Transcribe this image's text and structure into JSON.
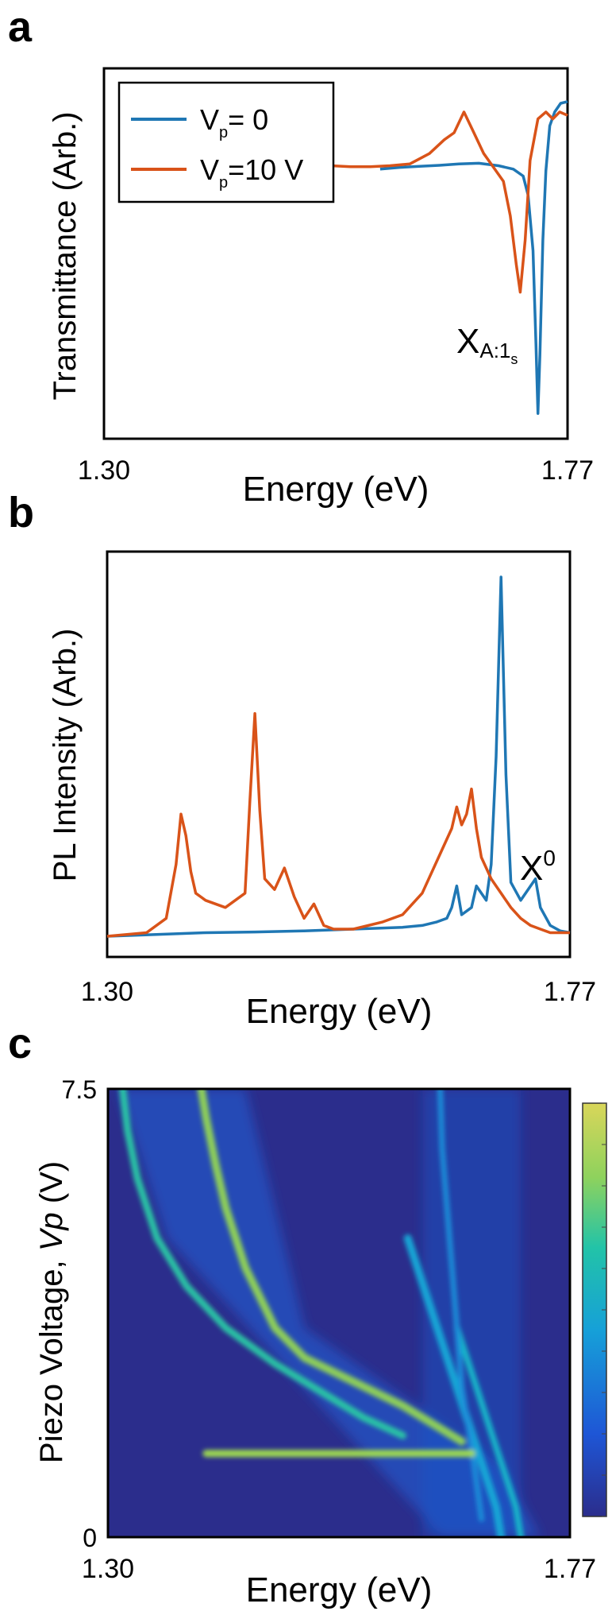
{
  "colors": {
    "series_blue": "#1f77b4",
    "series_orange": "#d95319",
    "map_low": "#2b2d8c",
    "map_high": "#f9fb57"
  },
  "chart_data": [
    {
      "panel": "a",
      "type": "line",
      "ylabel": "Transmittance (Arb.)",
      "xlabel": "Energy (eV)",
      "xlim": [
        1.3,
        1.77
      ],
      "x_ticks": [
        "1.30",
        "1.77"
      ],
      "legend": {
        "placement": "top-left",
        "entries": [
          {
            "main": "V",
            "sub": "p",
            "rest": "= 0",
            "color": "#1f77b4"
          },
          {
            "main": "V",
            "sub": "p",
            "rest": "=10 V",
            "color": "#d95319"
          }
        ]
      },
      "annotation": {
        "main": "X",
        "sub": "A:1",
        "subsub": "s"
      },
      "series": [
        {
          "name": "V_p= 0",
          "color": "#1f77b4",
          "x": [
            1.58,
            1.6,
            1.62,
            1.64,
            1.66,
            1.68,
            1.7,
            1.715,
            1.725,
            1.73,
            1.735,
            1.738,
            1.74,
            1.742,
            1.745,
            1.748,
            1.752,
            1.757,
            1.763,
            1.77
          ],
          "y": [
            0.755,
            0.76,
            0.763,
            0.766,
            0.77,
            0.772,
            0.765,
            0.755,
            0.735,
            0.68,
            0.52,
            0.25,
            0.05,
            0.22,
            0.55,
            0.75,
            0.88,
            0.92,
            0.945,
            0.95
          ]
        },
        {
          "name": "V_p=10 V",
          "color": "#d95319",
          "x": [
            1.53,
            1.55,
            1.57,
            1.59,
            1.61,
            1.63,
            1.645,
            1.655,
            1.665,
            1.675,
            1.685,
            1.695,
            1.705,
            1.712,
            1.718,
            1.722,
            1.727,
            1.732,
            1.74,
            1.748,
            1.755,
            1.762,
            1.77
          ],
          "y": [
            0.765,
            0.762,
            0.762,
            0.765,
            0.77,
            0.8,
            0.84,
            0.86,
            0.92,
            0.86,
            0.8,
            0.76,
            0.72,
            0.62,
            0.48,
            0.4,
            0.55,
            0.78,
            0.9,
            0.92,
            0.9,
            0.92,
            0.91
          ]
        }
      ]
    },
    {
      "panel": "b",
      "type": "line",
      "ylabel": "PL Intensity (Arb.)",
      "xlabel": "Energy (eV)",
      "xlim": [
        1.3,
        1.77
      ],
      "x_ticks": [
        "1.30",
        "1.77"
      ],
      "annotation": {
        "main": "X",
        "sup": "0"
      },
      "series": [
        {
          "name": "V_p= 0",
          "color": "#1f77b4",
          "x": [
            1.3,
            1.35,
            1.4,
            1.45,
            1.5,
            1.55,
            1.6,
            1.62,
            1.635,
            1.645,
            1.65,
            1.655,
            1.66,
            1.67,
            1.675,
            1.685,
            1.69,
            1.695,
            1.7,
            1.705,
            1.71,
            1.72,
            1.73,
            1.735,
            1.74,
            1.75,
            1.76,
            1.77
          ],
          "y": [
            0.0,
            0.005,
            0.01,
            0.012,
            0.015,
            0.02,
            0.025,
            0.03,
            0.04,
            0.05,
            0.08,
            0.14,
            0.06,
            0.08,
            0.14,
            0.1,
            0.2,
            0.5,
            1.0,
            0.45,
            0.15,
            0.1,
            0.14,
            0.16,
            0.08,
            0.03,
            0.015,
            0.01
          ]
        },
        {
          "name": "V_p=10 V",
          "color": "#d95319",
          "x": [
            1.3,
            1.34,
            1.36,
            1.37,
            1.375,
            1.38,
            1.385,
            1.39,
            1.4,
            1.42,
            1.44,
            1.445,
            1.45,
            1.455,
            1.46,
            1.47,
            1.48,
            1.49,
            1.5,
            1.51,
            1.52,
            1.53,
            1.55,
            1.58,
            1.6,
            1.62,
            1.64,
            1.65,
            1.655,
            1.66,
            1.665,
            1.67,
            1.675,
            1.68,
            1.69,
            1.7,
            1.71,
            1.72,
            1.73,
            1.74,
            1.75,
            1.76,
            1.77
          ],
          "y": [
            0.0,
            0.01,
            0.05,
            0.2,
            0.34,
            0.28,
            0.18,
            0.12,
            0.1,
            0.08,
            0.12,
            0.38,
            0.62,
            0.35,
            0.16,
            0.13,
            0.19,
            0.11,
            0.05,
            0.09,
            0.03,
            0.02,
            0.02,
            0.04,
            0.06,
            0.12,
            0.24,
            0.3,
            0.36,
            0.31,
            0.34,
            0.41,
            0.3,
            0.22,
            0.16,
            0.12,
            0.08,
            0.05,
            0.03,
            0.02,
            0.01,
            0.01,
            0.01
          ]
        }
      ]
    },
    {
      "panel": "c",
      "type": "heatmap",
      "ylabel_plain": "Piezo Voltage, ",
      "ylabel_italic": "Vp",
      "ylabel_unit": " (V)",
      "xlabel": "Energy (eV)",
      "xlim": [
        1.3,
        1.77
      ],
      "ylim": [
        0,
        7.5
      ],
      "x_ticks": [
        "1.30",
        "1.77"
      ],
      "y_ticks": [
        "0",
        "7.5"
      ],
      "colorbar": true,
      "traces": [
        {
          "x": [
            1.7,
            1.695,
            1.685,
            1.675,
            1.665,
            1.655,
            1.645,
            1.635,
            1.625,
            1.615,
            1.605
          ],
          "y": [
            0.0,
            0.5,
            1.0,
            1.5,
            2.0,
            2.5,
            3.0,
            3.5,
            4.0,
            4.5,
            5.0
          ]
        },
        {
          "x": [
            1.72,
            1.715,
            1.705,
            1.695,
            1.685,
            1.675,
            1.665,
            1.655
          ],
          "y": [
            0.0,
            0.5,
            1.0,
            1.5,
            2.0,
            2.5,
            3.0,
            3.5
          ]
        },
        {
          "x": [
            1.66,
            1.64,
            1.6,
            1.55,
            1.5,
            1.47,
            1.44,
            1.42,
            1.41,
            1.4,
            1.395
          ],
          "y": [
            1.6,
            1.8,
            2.2,
            2.6,
            3.0,
            3.5,
            4.5,
            5.5,
            6.2,
            7.0,
            7.5
          ]
        },
        {
          "x": [
            1.6,
            1.56,
            1.52,
            1.47,
            1.42,
            1.38,
            1.35,
            1.33,
            1.32,
            1.315
          ],
          "y": [
            1.7,
            2.0,
            2.4,
            2.9,
            3.5,
            4.2,
            5.0,
            6.0,
            6.8,
            7.5
          ]
        },
        {
          "x": [
            1.68,
            1.67,
            1.66,
            1.655,
            1.65,
            1.645,
            1.64,
            1.638
          ],
          "y": [
            0.3,
            1.5,
            2.5,
            3.5,
            4.5,
            5.5,
            6.5,
            7.5
          ]
        }
      ],
      "band": {
        "y": 1.4,
        "x_start": 1.4,
        "x_end": 1.67
      }
    }
  ]
}
